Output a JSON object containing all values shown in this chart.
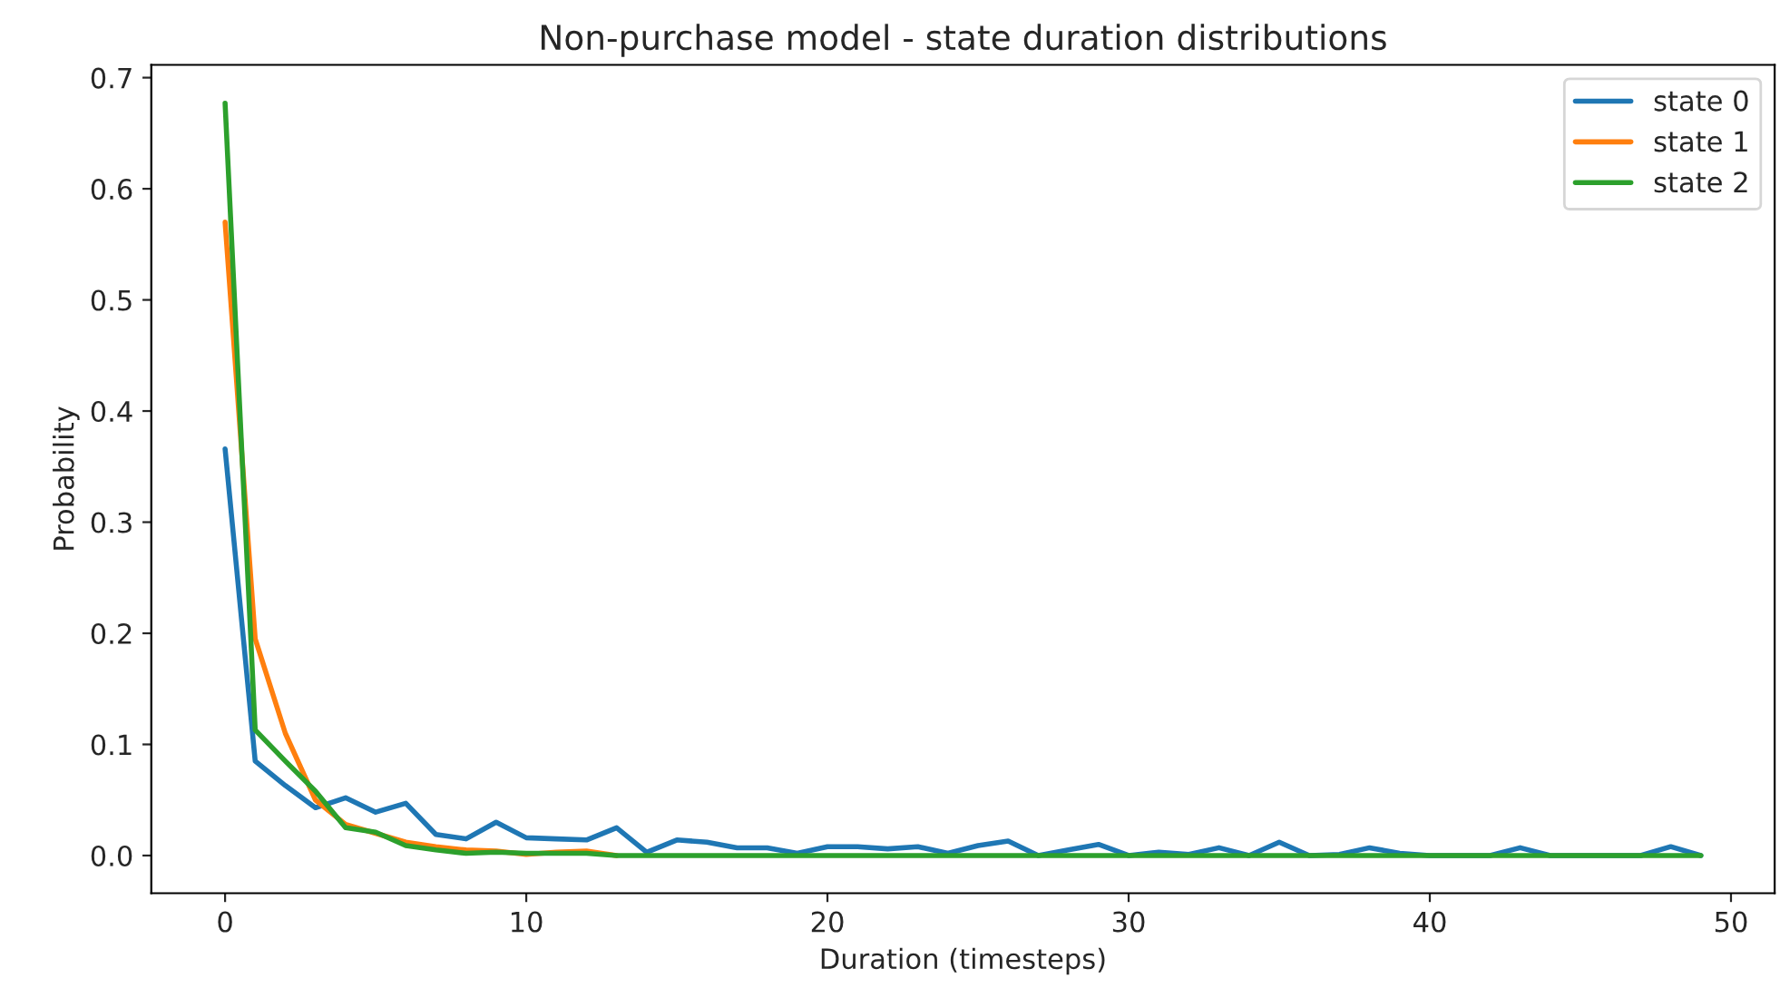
{
  "chart_data": {
    "type": "line",
    "title": "Non-purchase model - state duration distributions",
    "xlabel": "Duration (timesteps)",
    "ylabel": "Probability",
    "x": [
      0,
      1,
      2,
      3,
      4,
      5,
      6,
      7,
      8,
      9,
      10,
      11,
      12,
      13,
      14,
      15,
      16,
      17,
      18,
      19,
      20,
      21,
      22,
      23,
      24,
      25,
      26,
      27,
      28,
      29,
      30,
      31,
      32,
      33,
      34,
      35,
      36,
      37,
      38,
      39,
      40,
      41,
      42,
      43,
      44,
      45,
      46,
      47,
      48,
      49
    ],
    "series": [
      {
        "name": "state 0",
        "color": "#1f77b4",
        "values": [
          0.366,
          0.085,
          0.063,
          0.043,
          0.052,
          0.039,
          0.047,
          0.019,
          0.015,
          0.03,
          0.016,
          0.015,
          0.014,
          0.025,
          0.003,
          0.014,
          0.012,
          0.007,
          0.007,
          0.002,
          0.008,
          0.008,
          0.006,
          0.008,
          0.002,
          0.009,
          0.013,
          0.0,
          0.005,
          0.01,
          0.0,
          0.003,
          0.001,
          0.007,
          0.0,
          0.012,
          0.0,
          0.001,
          0.007,
          0.002,
          0.0,
          0.0,
          0.0,
          0.007,
          0.0,
          0.0,
          0.0,
          0.0,
          0.008,
          0.0
        ]
      },
      {
        "name": "state 1",
        "color": "#ff7f0e",
        "values": [
          0.57,
          0.195,
          0.11,
          0.05,
          0.028,
          0.02,
          0.012,
          0.008,
          0.005,
          0.004,
          0.001,
          0.003,
          0.004,
          0.0,
          null,
          null,
          null,
          null,
          null,
          null,
          null,
          null,
          null,
          null,
          null,
          null,
          null,
          null,
          null,
          null,
          null,
          null,
          null,
          null,
          null,
          null,
          null,
          null,
          null,
          null,
          null,
          null,
          null,
          null,
          null,
          null,
          null,
          null,
          null,
          null
        ]
      },
      {
        "name": "state 2",
        "color": "#2ca02c",
        "values": [
          0.677,
          0.113,
          0.085,
          0.058,
          0.025,
          0.021,
          0.009,
          0.005,
          0.002,
          0.003,
          0.002,
          0.002,
          0.002,
          0.0,
          0.0,
          0.0,
          0.0,
          0.0,
          0.0,
          0.0,
          0.0,
          0.0,
          0.0,
          0.0,
          0.0,
          0.0,
          0.0,
          0.0,
          0.0,
          0.0,
          0.0,
          0.0,
          0.0,
          0.0,
          0.0,
          0.0,
          0.0,
          0.0,
          0.0,
          0.0,
          0.0,
          0.0,
          0.0,
          0.0,
          0.0,
          0.0,
          0.0,
          0.0,
          0.0,
          0.0
        ]
      }
    ],
    "xlim": [
      -2.45,
      51.45
    ],
    "xticks": [
      0,
      10,
      20,
      30,
      40,
      50
    ],
    "ylim": [
      -0.0339,
      0.7115
    ],
    "yticks": [
      {
        "value": 0,
        "label": "0.0"
      },
      {
        "value": 0.1,
        "label": "0.1"
      },
      {
        "value": 0.2,
        "label": "0.2"
      },
      {
        "value": 0.3,
        "label": "0.3"
      },
      {
        "value": 0.4,
        "label": "0.4"
      },
      {
        "value": 0.5,
        "label": "0.5"
      },
      {
        "value": 0.6,
        "label": "0.6"
      },
      {
        "value": 0.7,
        "label": "0.7"
      }
    ],
    "grid": false,
    "legend": "top right",
    "marker": "none",
    "line_style": "solid"
  }
}
